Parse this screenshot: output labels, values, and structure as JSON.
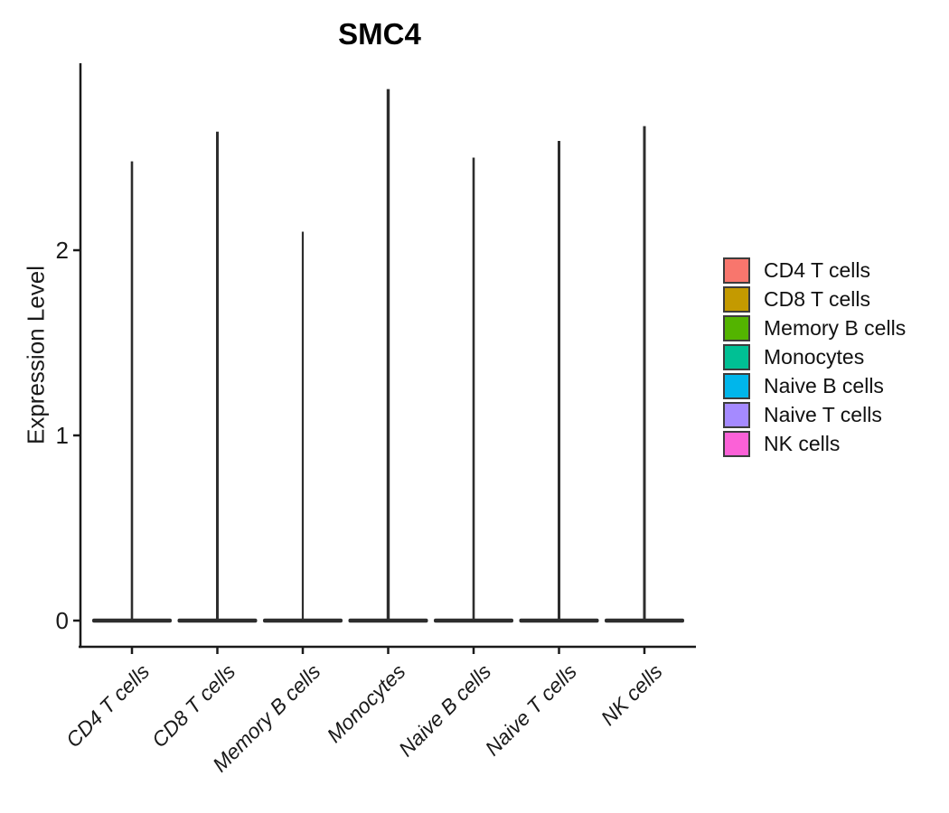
{
  "chart_data": {
    "type": "violin",
    "title": "SMC4",
    "xlabel": "",
    "ylabel": "Expression Level",
    "categories": [
      "CD4 T cells",
      "CD8 T cells",
      "Memory B cells",
      "Monocytes",
      "Naive B cells",
      "Naive T cells",
      "NK cells"
    ],
    "series": [
      {
        "name": "violin_max_expression",
        "values": [
          2.48,
          2.64,
          2.1,
          2.87,
          2.5,
          2.59,
          2.67
        ]
      },
      {
        "name": "violin_mode_expression",
        "values": [
          0,
          0,
          0,
          0,
          0,
          0,
          0
        ]
      }
    ],
    "distribution_note": "Each violin collapses to a thin vertical spike: nearly all density sits at expression 0 (wide flat base) with a thin tail reaching the max value.",
    "yticks": [
      "0",
      "1",
      "2"
    ],
    "ylim": [
      -0.15,
      3.0
    ],
    "grid": false,
    "legend_position": "right",
    "legend": [
      {
        "label": "CD4 T cells",
        "color": "#F8766D"
      },
      {
        "label": "CD8 T cells",
        "color": "#C49A00"
      },
      {
        "label": "Memory B cells",
        "color": "#53B400"
      },
      {
        "label": "Monocytes",
        "color": "#00C094"
      },
      {
        "label": "Naive B cells",
        "color": "#00B6EB"
      },
      {
        "label": "Naive T cells",
        "color": "#A58AFF"
      },
      {
        "label": "NK cells",
        "color": "#FB61D7"
      }
    ],
    "colors": {
      "axis": "#1A1A1A",
      "violin_outline": "#2D2D2D",
      "text": "#1A1A1A",
      "background": "#FFFFFF",
      "legend_key_border": "#3C3C3C"
    }
  }
}
